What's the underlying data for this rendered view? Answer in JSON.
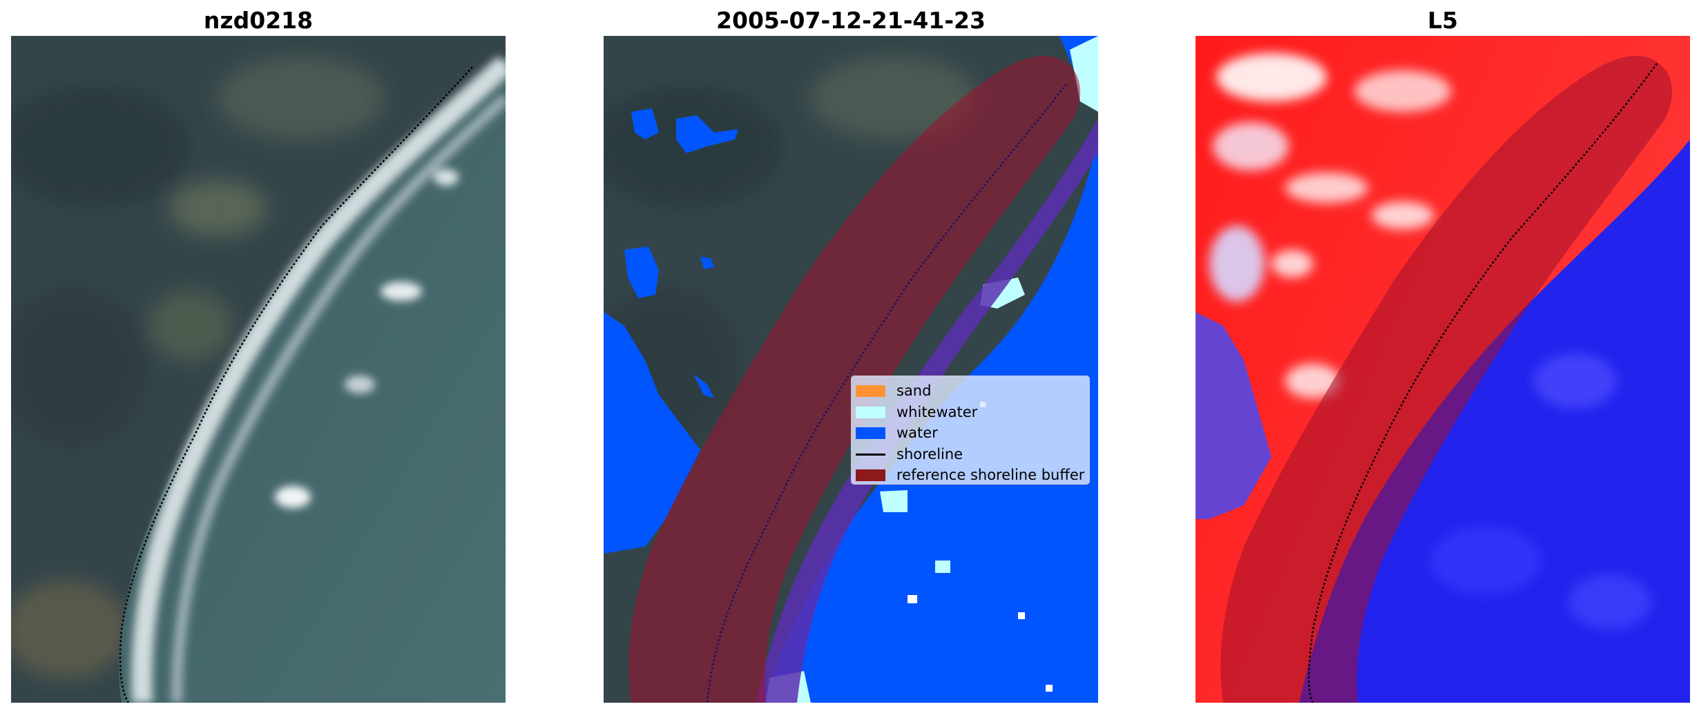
{
  "panels": [
    {
      "title": "nzd0218",
      "content": "rgb-satellite-image"
    },
    {
      "title": "2005-07-12-21-41-23",
      "content": "classified-image"
    },
    {
      "title": "L5",
      "content": "index-image"
    }
  ],
  "legend": {
    "items": [
      {
        "label": "sand",
        "color": "#ff9233"
      },
      {
        "label": "whitewater",
        "color": "#c0ffff"
      },
      {
        "label": "water",
        "color": "#0055ff"
      },
      {
        "label": "shoreline",
        "color": "#000000",
        "kind": "line"
      },
      {
        "label": "reference shoreline buffer",
        "color": "#8b1a1a"
      }
    ]
  },
  "colors": {
    "land_dark": "#3a4c4f",
    "sea_rgb": "#43676c",
    "surf": "#e8eef0",
    "water_class": "#0055ff",
    "whitewater_class": "#c0ffff",
    "buffer_overlay": "#a0102e",
    "index_high": "#ff1a1a",
    "index_low": "#2020ee"
  }
}
